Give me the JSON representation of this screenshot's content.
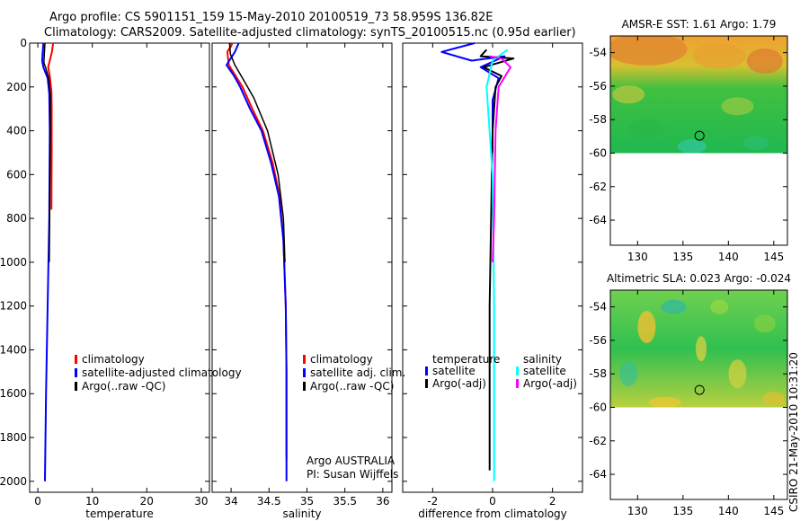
{
  "header": {
    "line1": "Argo profile: CS 5901151_159 15-May-2010 20100519_73 58.959S 136.82E",
    "line2": "Climatology: CARS2009. Satellite-adjusted climatology: synTS_20100515.nc (0.95d earlier)"
  },
  "footer_stamp": "CSIRO 21-May-2010 10:31:20",
  "colors": {
    "climatology": "#ff0000",
    "satellite": "#0000ff",
    "argo": "#000000",
    "sal_satellite": "#00ffff",
    "sal_argo": "#ff00ff"
  },
  "chart_data": [
    {
      "type": "line",
      "id": "temperature",
      "xlabel": "temperature",
      "xlim": [
        -1.5,
        31.5
      ],
      "xticks": [
        0,
        10,
        20,
        30
      ],
      "ylim": [
        0,
        2050
      ],
      "yticks": [
        0,
        200,
        400,
        600,
        800,
        1000,
        1200,
        1400,
        1600,
        1800,
        2000
      ],
      "legend": {
        "placement": "lower-middle",
        "entries": [
          "climatology",
          "satellite-adjusted climatology",
          "Argo(..raw -QC)"
        ]
      },
      "series": [
        {
          "name": "climatology",
          "color": "#ff0000",
          "width": 2,
          "points": [
            [
              2.8,
              0
            ],
            [
              2.6,
              40
            ],
            [
              2.2,
              80
            ],
            [
              1.9,
              110
            ],
            [
              2.2,
              150
            ],
            [
              2.5,
              220
            ],
            [
              2.55,
              300
            ],
            [
              2.55,
              500
            ],
            [
              2.5,
              760
            ]
          ]
        },
        {
          "name": "satellite-adjusted climatology",
          "color": "#0000ff",
          "width": 2,
          "points": [
            [
              1.0,
              0
            ],
            [
              0.9,
              40
            ],
            [
              0.8,
              80
            ],
            [
              1.0,
              110
            ],
            [
              1.8,
              160
            ],
            [
              2.1,
              230
            ],
            [
              2.2,
              400
            ],
            [
              2.1,
              800
            ],
            [
              1.8,
              1200
            ],
            [
              1.5,
              1600
            ],
            [
              1.3,
              2000
            ]
          ]
        },
        {
          "name": "Argo(..raw -QC)",
          "color": "#000000",
          "width": 1.5,
          "points": [
            [
              1.3,
              0
            ],
            [
              1.2,
              40
            ],
            [
              1.1,
              90
            ],
            [
              1.4,
              110
            ],
            [
              2.0,
              160
            ],
            [
              2.3,
              240
            ],
            [
              2.3,
              400
            ],
            [
              2.2,
              700
            ],
            [
              2.1,
              1000
            ]
          ]
        }
      ]
    },
    {
      "type": "line",
      "id": "salinity",
      "xlabel": "salinity",
      "xlim": [
        33.75,
        36.12
      ],
      "xticks": [
        34,
        34.5,
        35,
        35.5,
        36
      ],
      "ylim": [
        0,
        2050
      ],
      "legend": {
        "placement": "lower-middle",
        "entries": [
          "climatology",
          "satellite adj. clim.",
          "Argo(..raw -QC)"
        ]
      },
      "annotations": [
        "Argo AUSTRALIA",
        "PI: Susan Wijffels"
      ],
      "series": [
        {
          "name": "climatology",
          "color": "#ff0000",
          "width": 2,
          "points": [
            [
              34.02,
              0
            ],
            [
              33.95,
              40
            ],
            [
              33.97,
              100
            ],
            [
              34.06,
              150
            ],
            [
              34.15,
              200
            ],
            [
              34.28,
              300
            ],
            [
              34.42,
              400
            ],
            [
              34.55,
              550
            ],
            [
              34.64,
              700
            ],
            [
              34.69,
              900
            ],
            [
              34.72,
              1200
            ],
            [
              34.73,
              1500
            ],
            [
              34.73,
              1900
            ]
          ]
        },
        {
          "name": "satellite adj. clim.",
          "color": "#0000ff",
          "width": 2,
          "points": [
            [
              34.1,
              0
            ],
            [
              34.05,
              40
            ],
            [
              33.94,
              100
            ],
            [
              34.04,
              150
            ],
            [
              34.12,
              200
            ],
            [
              34.25,
              300
            ],
            [
              34.4,
              400
            ],
            [
              34.53,
              550
            ],
            [
              34.63,
              700
            ],
            [
              34.69,
              900
            ],
            [
              34.72,
              1200
            ],
            [
              34.73,
              1500
            ],
            [
              34.73,
              2000
            ]
          ]
        },
        {
          "name": "Argo(..raw -QC)",
          "color": "#000000",
          "width": 1.5,
          "points": [
            [
              33.98,
              0
            ],
            [
              33.99,
              50
            ],
            [
              34.05,
              100
            ],
            [
              34.15,
              160
            ],
            [
              34.3,
              250
            ],
            [
              34.48,
              400
            ],
            [
              34.62,
              600
            ],
            [
              34.69,
              800
            ],
            [
              34.71,
              1000
            ]
          ]
        }
      ]
    },
    {
      "type": "line",
      "id": "difference",
      "xlabel": "difference from climatology",
      "xlim": [
        -3.0,
        3.0
      ],
      "xticks": [
        -2,
        0,
        2
      ],
      "ylim": [
        0,
        2050
      ],
      "legend": {
        "placement": "lower-middle",
        "temperature_title": "temperature",
        "salinity_title": "salinity",
        "temperature_entries": [
          "satellite",
          "Argo(-adj)"
        ],
        "salinity_entries": [
          "satellite",
          "Argo(-adj)"
        ]
      },
      "series": [
        {
          "name": "temperature satellite",
          "color": "#0000ff",
          "width": 2,
          "points": [
            [
              -0.6,
              0
            ],
            [
              -1.7,
              40
            ],
            [
              -0.7,
              80
            ],
            [
              0.4,
              60
            ],
            [
              -0.4,
              110
            ],
            [
              0.2,
              160
            ],
            [
              0,
              260
            ],
            [
              0,
              500
            ]
          ]
        },
        {
          "name": "temperature Argo(-adj)",
          "color": "#000000",
          "width": 2,
          "points": [
            [
              -0.2,
              30
            ],
            [
              -0.4,
              60
            ],
            [
              0.7,
              70
            ],
            [
              -0.3,
              110
            ],
            [
              0.3,
              150
            ],
            [
              0.1,
              200
            ],
            [
              0,
              400
            ],
            [
              -0.1,
              1200
            ],
            [
              -0.1,
              1950
            ]
          ]
        },
        {
          "name": "salinity satellite",
          "color": "#00ffff",
          "width": 2,
          "points": [
            [
              0.5,
              30
            ],
            [
              0.0,
              80
            ],
            [
              -0.2,
              200
            ],
            [
              0.0,
              600
            ],
            [
              0.05,
              1200
            ],
            [
              0.05,
              2000
            ]
          ]
        },
        {
          "name": "salinity Argo(-adj)",
          "color": "#ff00ff",
          "width": 2,
          "points": [
            [
              -0.1,
              60
            ],
            [
              0.3,
              70
            ],
            [
              0.6,
              110
            ],
            [
              0.2,
              200
            ],
            [
              0.1,
              400
            ],
            [
              0.05,
              800
            ],
            [
              0.0,
              1000
            ]
          ]
        }
      ]
    },
    {
      "type": "heatmap",
      "id": "amsre-sst",
      "title": "AMSR-E SST: 1.61 Argo: 1.79",
      "xlim": [
        127,
        146.5
      ],
      "xticks": [
        130,
        135,
        140,
        145
      ],
      "ylim": [
        -65.5,
        -53
      ],
      "yticks": [
        -54,
        -56,
        -58,
        -60,
        -62,
        -64
      ],
      "data_extent": {
        "lon": [
          127,
          146.5
        ],
        "lat": [
          -60,
          -53
        ]
      },
      "marker": {
        "lon": 136.82,
        "lat": -58.96
      }
    },
    {
      "type": "heatmap",
      "id": "altimetric-sla",
      "title": "Altimetric SLA: 0.023 Argo: -0.024",
      "xlim": [
        127,
        146.5
      ],
      "xticks": [
        130,
        135,
        140,
        145
      ],
      "ylim": [
        -65.5,
        -53
      ],
      "yticks": [
        -54,
        -56,
        -58,
        -60,
        -62,
        -64
      ],
      "data_extent": {
        "lon": [
          127,
          146.5
        ],
        "lat": [
          -60,
          -53
        ]
      },
      "marker": {
        "lon": 136.82,
        "lat": -58.96
      }
    }
  ]
}
